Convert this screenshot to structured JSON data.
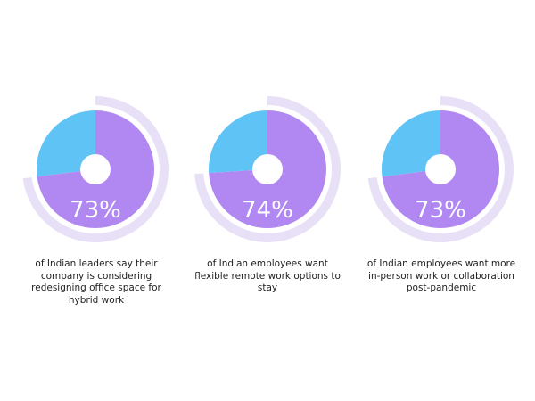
{
  "colors": {
    "purple": "#b188f2",
    "blue": "#5fc4f5",
    "ring": "#e8e0f6",
    "hole": "#ffffff"
  },
  "chart_data": [
    {
      "type": "pie",
      "value": 73,
      "label": "73%",
      "caption": "of Indian leaders say their company is considering redesigning office space for hybrid work"
    },
    {
      "type": "pie",
      "value": 74,
      "label": "74%",
      "caption": "of Indian employees want flexible remote work options to stay"
    },
    {
      "type": "pie",
      "value": 73,
      "label": "73%",
      "caption": "of Indian employees want more in-person work or collaboration post-pandemic"
    }
  ]
}
